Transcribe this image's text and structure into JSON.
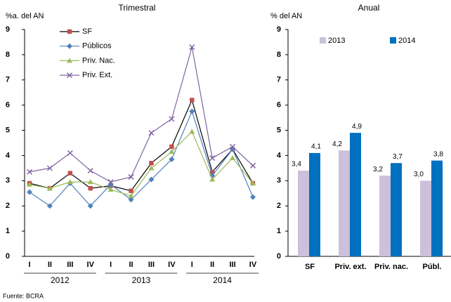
{
  "chart_data": [
    {
      "type": "line",
      "title": "Trimestral",
      "y_label": "%a. del AN",
      "categories": [
        "I",
        "II",
        "III",
        "IV",
        "I",
        "II",
        "III",
        "IV",
        "I",
        "II",
        "III",
        "IV"
      ],
      "groups": [
        {
          "name": "2012",
          "span": 4
        },
        {
          "name": "2013",
          "span": 4
        },
        {
          "name": "2014",
          "span": 4
        }
      ],
      "ylim": [
        0,
        9
      ],
      "yticks": [
        0,
        1,
        2,
        3,
        4,
        5,
        6,
        7,
        8,
        9
      ],
      "grid": false,
      "legend": "upper-left",
      "series": [
        {
          "name": "SF",
          "color": "#c0504d",
          "line_color": "#000000",
          "marker": "square",
          "values": [
            2.9,
            2.7,
            3.3,
            2.7,
            2.8,
            2.6,
            3.7,
            4.35,
            6.2,
            3.35,
            4.25,
            2.9
          ]
        },
        {
          "name": "Públicos",
          "color": "#4f81bd",
          "marker": "diamond",
          "values": [
            2.55,
            2.0,
            2.9,
            2.0,
            2.85,
            2.25,
            3.05,
            3.85,
            5.75,
            3.2,
            4.25,
            2.35
          ]
        },
        {
          "name": "Priv. Nac.",
          "color": "#9bbb59",
          "marker": "triangle",
          "values": [
            2.85,
            2.7,
            2.95,
            2.95,
            2.65,
            2.4,
            3.5,
            4.15,
            4.95,
            3.05,
            3.9,
            2.9
          ]
        },
        {
          "name": "Priv. Ext.",
          "color": "#8064a2",
          "marker": "x",
          "values": [
            3.35,
            3.5,
            4.1,
            3.4,
            2.95,
            3.15,
            4.9,
            5.45,
            8.3,
            3.9,
            4.35,
            3.6
          ]
        }
      ]
    },
    {
      "type": "bar",
      "title": "Anual",
      "y_label": "% del AN",
      "categories": [
        "SF",
        "Priv. ext.",
        "Priv. nac.",
        "Públ."
      ],
      "ylim": [
        0,
        9
      ],
      "yticks": [
        0,
        1,
        2,
        3,
        4,
        5,
        6,
        7,
        8,
        9
      ],
      "grid": false,
      "legend": "top",
      "series": [
        {
          "name": "2013",
          "color": "#ccc0da",
          "values": [
            3.4,
            4.2,
            3.2,
            3.0
          ],
          "value_labels": [
            "3,4",
            "4,2",
            "3,2",
            "3,0"
          ]
        },
        {
          "name": "2014",
          "color": "#0070c0",
          "values": [
            4.1,
            4.9,
            3.7,
            3.8
          ],
          "value_labels": [
            "4,1",
            "4,9",
            "3,7",
            "3,8"
          ]
        }
      ]
    }
  ],
  "source": "Fuente: BCRA"
}
